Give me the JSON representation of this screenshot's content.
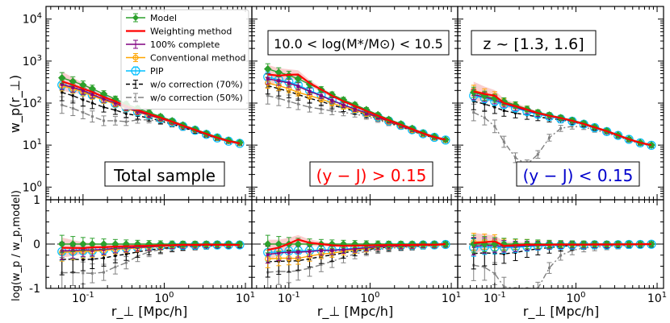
{
  "figure": {
    "ylabel_top": "w_p(r_⊥)",
    "ylabel_bottom": "log(w_p / w_p,model)",
    "xlabel": "r_⊥ [Mpc/h]"
  },
  "annotations": {
    "panel1": "Total sample",
    "panel2_header": "10.0 < log(M*/M⊙) < 10.5",
    "panel2": "(y − J) > 0.15",
    "panel3_header": "z ~ [1.3, 1.6]",
    "panel3": "(y − J) < 0.15"
  },
  "legend": [
    {
      "name": "Model",
      "color": "#2ca02c"
    },
    {
      "name": "Weighting method",
      "color": "#ff0000"
    },
    {
      "name": "100% complete",
      "color": "#800080"
    },
    {
      "name": "Conventional method",
      "color": "#ffa500"
    },
    {
      "name": "PIP",
      "color": "#00bfff"
    },
    {
      "name": "w/o correction (70%)",
      "color": "#000000"
    },
    {
      "name": "w/o correction (50%)",
      "color": "#808080"
    }
  ],
  "chart_data": {
    "type": "line",
    "x": [
      0.055,
      0.075,
      0.1,
      0.13,
      0.18,
      0.25,
      0.34,
      0.47,
      0.65,
      0.9,
      1.25,
      1.7,
      2.4,
      3.3,
      4.5,
      6.2,
      8.5
    ],
    "xscale": "log",
    "xlim": [
      0.035,
      12
    ],
    "xticks": [
      "10^-1",
      "10^0",
      "10^1"
    ],
    "ylim_top": [
      0.5,
      20000
    ],
    "yticks_top": [
      "10^0",
      "10^1",
      "10^2",
      "10^3",
      "10^4"
    ],
    "ylim_bottom": [
      -1,
      1
    ],
    "yticks_bottom": [
      "-1",
      "0",
      "1"
    ],
    "panels": [
      {
        "name": "Total sample",
        "series": [
          {
            "name": "Model",
            "values": [
              400,
              330,
              270,
              220,
              165,
              125,
              95,
              75,
              60,
              48,
              38,
              30,
              24,
              19,
              15.5,
              13,
              11.5
            ]
          },
          {
            "name": "Weighting method",
            "values": [
              330,
              270,
              220,
              185,
              140,
              110,
              85,
              68,
              55,
              45,
              36,
              29,
              23,
              18.5,
              15,
              12.5,
              11
            ]
          },
          {
            "name": "100% complete",
            "values": [
              280,
              235,
              200,
              160,
              125,
              100,
              78,
              63,
              52,
              43,
              35,
              28,
              22.5,
              18,
              14.8,
              12.4,
              11
            ]
          },
          {
            "name": "Conventional method",
            "values": [
              260,
              220,
              185,
              150,
              118,
              95,
              75,
              61,
              51,
              42,
              34.5,
              28,
              22.5,
              18,
              14.8,
              12.4,
              11
            ]
          },
          {
            "name": "PIP",
            "values": [
              270,
              225,
              190,
              155,
              122,
              97,
              77,
              62,
              52,
              43,
              35,
              28,
              22.5,
              18,
              14.8,
              12.4,
              11
            ]
          },
          {
            "name": "w/o correction (70%)",
            "values": [
              180,
              150,
              120,
              100,
              80,
              68,
              56,
              50,
              44,
              38,
              32,
              26.5,
              21.5,
              17.5,
              14.5,
              12.2,
              10.8
            ]
          },
          {
            "name": "w/o correction (50%)",
            "values": [
              90,
              75,
              60,
              48,
              38,
              38,
              36,
              40,
              40,
              36,
              31,
              25.5,
              21,
              17,
              14.2,
              12,
              10.7
            ]
          }
        ]
      },
      {
        "name": "(y − J) > 0.15",
        "series": [
          {
            "name": "Model",
            "values": [
              650,
              540,
              460,
              380,
              280,
              210,
              160,
              120,
              92,
              70,
              53,
              41,
              32,
              25,
              19.5,
              16,
              13.5
            ]
          },
          {
            "name": "Weighting method",
            "values": [
              480,
              450,
              470,
              480,
              300,
              210,
              150,
              110,
              85,
              65,
              50,
              39,
              30.5,
              24,
              19,
              15.5,
              13.5
            ]
          },
          {
            "name": "100% complete",
            "values": [
              380,
              340,
              300,
              250,
              190,
              150,
              115,
              90,
              72,
              58,
              46,
              37,
              29,
              23,
              18.5,
              15.2,
              13.2
            ]
          },
          {
            "name": "Conventional method",
            "values": [
              300,
              260,
              220,
              180,
              150,
              125,
              100,
              82,
              68,
              55,
              45,
              36,
              28.5,
              22.5,
              18.2,
              15,
              13
            ]
          },
          {
            "name": "PIP",
            "values": [
              420,
              360,
              320,
              270,
              200,
              155,
              118,
              92,
              73,
              59,
              47,
              37.5,
              29.5,
              23.2,
              18.6,
              15.3,
              13.2
            ]
          },
          {
            "name": "w/o correction (70%)",
            "values": [
              260,
              220,
              190,
              160,
              130,
              110,
              90,
              76,
              64,
              52,
              43,
              35,
              28,
              22,
              17.8,
              14.8,
              12.9
            ]
          },
          {
            "name": "w/o correction (50%)",
            "values": [
              150,
              130,
              110,
              95,
              80,
              72,
              65,
              60,
              55,
              48,
              40,
              33,
              27,
              21.5,
              17.5,
              14.6,
              12.8
            ]
          }
        ]
      },
      {
        "name": "(y − J) < 0.15",
        "series": [
          {
            "name": "Model",
            "values": [
              180,
              150,
              130,
              110,
              90,
              72,
              60,
              52,
              45,
              39,
              33,
              27,
              22,
              17.5,
              14,
              11.5,
              10
            ]
          },
          {
            "name": "Weighting method",
            "values": [
              190,
              165,
              150,
              100,
              85,
              70,
              58,
              50,
              44,
              38,
              32,
              26.5,
              21.5,
              17.2,
              13.8,
              11.4,
              10
            ]
          },
          {
            "name": "100% complete",
            "values": [
              160,
              140,
              120,
              98,
              80,
              66,
              56,
              49,
              43,
              37.5,
              31.5,
              26,
              21,
              17,
              13.7,
              11.3,
              9.9
            ]
          },
          {
            "name": "Conventional method",
            "values": [
              200,
              170,
              150,
              105,
              88,
              72,
              59,
              51,
              44,
              38,
              32,
              26.5,
              21.5,
              17.2,
              13.8,
              11.4,
              10
            ]
          },
          {
            "name": "PIP",
            "values": [
              150,
              130,
              110,
              92,
              76,
              63,
              54,
              48,
              42,
              37,
              31.5,
              26,
              21,
              17,
              13.7,
              11.3,
              9.9
            ]
          },
          {
            "name": "w/o correction (70%)",
            "values": [
              110,
              95,
              80,
              66,
              58,
              52,
              47,
              43,
              40,
              36,
              31,
              25.5,
              21,
              16.8,
              13.6,
              11.2,
              9.8
            ]
          },
          {
            "name": "w/o correction (50%)",
            "values": [
              60,
              45,
              28,
              12,
              5,
              3.5,
              6,
              15,
              25,
              28,
              27,
              23,
              19.5,
              16,
              13,
              10.8,
              9.5
            ]
          }
        ]
      }
    ]
  }
}
